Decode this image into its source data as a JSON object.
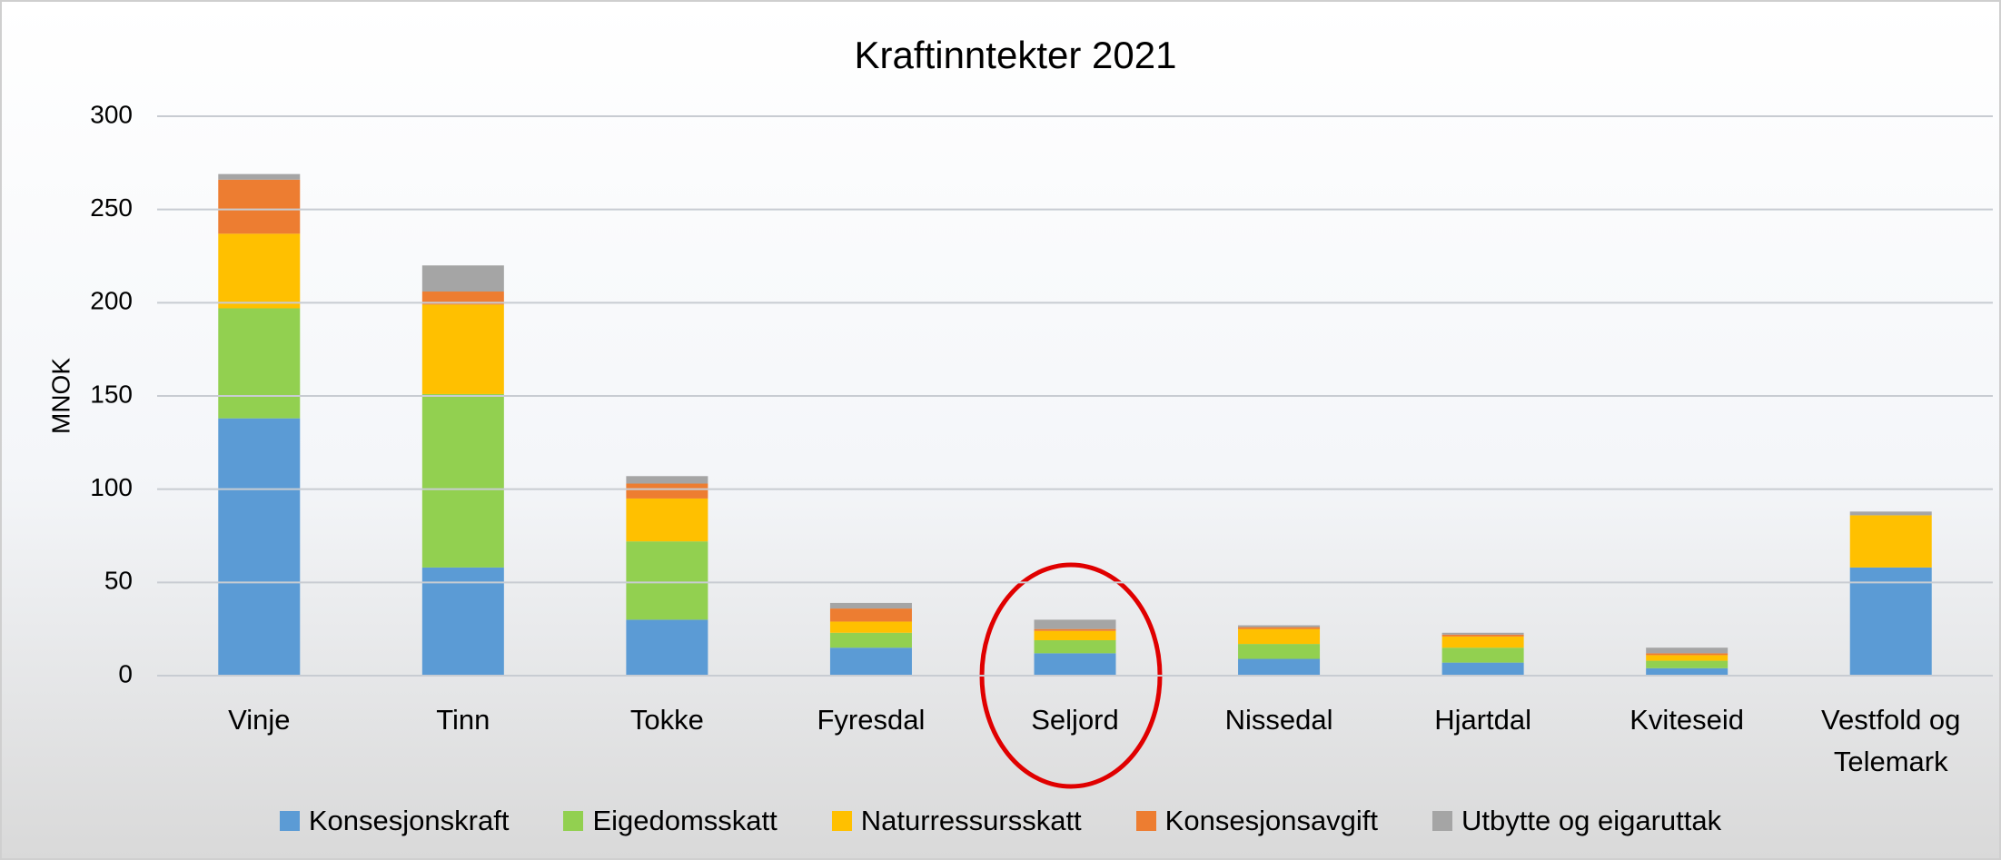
{
  "chart_data": {
    "type": "stacked_bar",
    "title": "Kraftinntekter 2021",
    "y_label": "MNOK",
    "categories": [
      "Vinje",
      "Tinn",
      "Tokke",
      "Fyresdal",
      "Seljord",
      "Nissedal",
      "Hjartdal",
      "Kviteseid",
      "Vestfold og Telemark"
    ],
    "series": [
      {
        "name": "Konsesjonskraft",
        "color": "#5b9bd5",
        "values": [
          138,
          58,
          30,
          15,
          12,
          9,
          7,
          4,
          58
        ]
      },
      {
        "name": "Eigedomsskatt",
        "color": "#92d050",
        "values": [
          59,
          93,
          42,
          8,
          7,
          8,
          8,
          4,
          0
        ]
      },
      {
        "name": "Naturressursskatt",
        "color": "#ffc000",
        "values": [
          40,
          48,
          23,
          6,
          5,
          8,
          6,
          3,
          28
        ]
      },
      {
        "name": "Konsesjonsavgift",
        "color": "#ed7d31",
        "values": [
          29,
          7,
          8,
          7,
          1,
          1,
          1,
          1,
          0
        ]
      },
      {
        "name": "Utbytte og eigaruttak",
        "color": "#a5a5a5",
        "values": [
          3,
          14,
          4,
          3,
          5,
          1,
          1,
          3,
          2
        ]
      }
    ],
    "ylim": [
      0,
      300
    ],
    "yticks": [
      0,
      50,
      100,
      150,
      200,
      250,
      300
    ],
    "grid": true,
    "legend": "bottom"
  }
}
